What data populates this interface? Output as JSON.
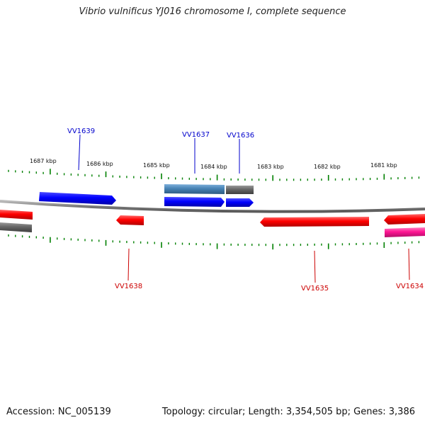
{
  "title": "Vibrio vulnificus YJ016 chromosome I, complete sequence",
  "footer": {
    "accession": "Accession: NC_005139",
    "topology": "Topology: circular; Length: 3,354,505 bp; Genes: 3,386"
  },
  "colors": {
    "forward_gene": "#0000ff",
    "reverse_gene": "#ff0000",
    "pseudo_gene": "#ff1493",
    "feature_grey": "#666666",
    "feature_steel": "#4682b4",
    "forward_label": "#0000cc",
    "reverse_label": "#cc0000",
    "tick": "#008000",
    "backbone": "#888888"
  },
  "scale": {
    "kbp_labels": [
      "1687 kbp",
      "1686 kbp",
      "1685 kbp",
      "1684 kbp",
      "1683 kbp",
      "1682 kbp",
      "1681 kbp"
    ]
  },
  "gene_labels": {
    "forward": [
      "VV1639",
      "VV1637",
      "VV1636"
    ],
    "reverse": [
      "VV1638",
      "VV1635",
      "VV1634"
    ]
  }
}
